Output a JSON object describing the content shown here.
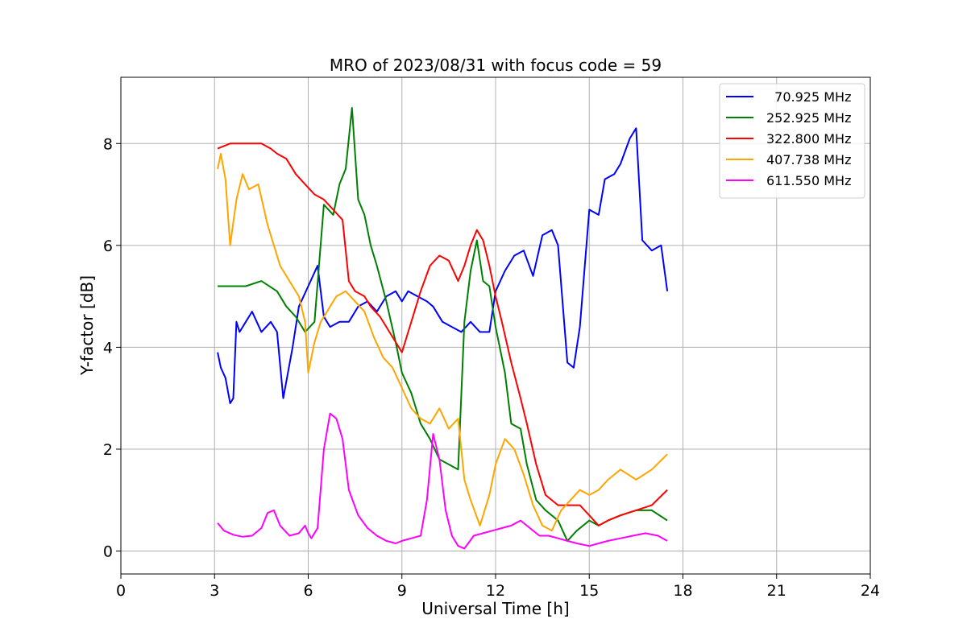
{
  "chart_data": {
    "type": "line",
    "title": "MRO of 2023/08/31 with focus code = 59",
    "xlabel": "Universal Time [h]",
    "ylabel": "Y-factor [dB]",
    "xlim": [
      0,
      24
    ],
    "ylim": [
      -0.45,
      9.3
    ],
    "xticks": [
      0,
      3,
      6,
      9,
      12,
      15,
      18,
      21,
      24
    ],
    "yticks": [
      0,
      2,
      4,
      6,
      8
    ],
    "grid": true,
    "legend_position": "top-right",
    "series": [
      {
        "name": "  70.925 MHz",
        "color": "#0000ff",
        "x": [
          3.1,
          3.2,
          3.35,
          3.5,
          3.6,
          3.7,
          3.8,
          4.0,
          4.2,
          4.5,
          4.8,
          5.0,
          5.2,
          5.5,
          5.7,
          6.0,
          6.3,
          6.5,
          6.7,
          7.0,
          7.3,
          7.6,
          7.9,
          8.2,
          8.5,
          8.8,
          9.0,
          9.2,
          9.5,
          9.8,
          10.0,
          10.3,
          10.6,
          10.9,
          11.2,
          11.5,
          11.8,
          12.0,
          12.3,
          12.6,
          12.9,
          13.2,
          13.5,
          13.8,
          14.0,
          14.3,
          14.5,
          14.7,
          15.0,
          15.3,
          15.5,
          15.8,
          16.0,
          16.3,
          16.5,
          16.7,
          17.0,
          17.3,
          17.5
        ],
        "y": [
          3.9,
          3.6,
          3.4,
          2.9,
          3.0,
          4.5,
          4.3,
          4.5,
          4.7,
          4.3,
          4.5,
          4.3,
          3.0,
          4.0,
          4.8,
          5.2,
          5.6,
          4.6,
          4.4,
          4.5,
          4.5,
          4.8,
          4.9,
          4.7,
          5.0,
          5.1,
          4.9,
          5.1,
          5.0,
          4.9,
          4.8,
          4.5,
          4.4,
          4.3,
          4.5,
          4.3,
          4.3,
          5.1,
          5.5,
          5.8,
          5.9,
          5.4,
          6.2,
          6.3,
          6.0,
          3.7,
          3.6,
          4.4,
          6.7,
          6.6,
          7.3,
          7.4,
          7.6,
          8.1,
          8.3,
          6.1,
          5.9,
          6.0,
          5.1
        ]
      },
      {
        "name": "252.925 MHz",
        "color": "#008000",
        "x": [
          3.1,
          3.5,
          4.0,
          4.5,
          5.0,
          5.3,
          5.6,
          5.9,
          6.2,
          6.5,
          6.8,
          7.0,
          7.2,
          7.4,
          7.6,
          7.8,
          8.0,
          8.2,
          8.5,
          8.8,
          9.0,
          9.3,
          9.6,
          9.9,
          10.2,
          10.5,
          10.8,
          11.0,
          11.2,
          11.4,
          11.6,
          11.8,
          12.0,
          12.3,
          12.5,
          12.8,
          13.0,
          13.3,
          13.6,
          14.0,
          14.3,
          14.6,
          15.0,
          15.3,
          15.6,
          16.0,
          16.5,
          17.0,
          17.5
        ],
        "y": [
          5.2,
          5.2,
          5.2,
          5.3,
          5.1,
          4.8,
          4.6,
          4.3,
          4.5,
          6.8,
          6.6,
          7.2,
          7.5,
          8.7,
          6.9,
          6.6,
          6.0,
          5.6,
          4.9,
          4.1,
          3.5,
          3.1,
          2.5,
          2.2,
          1.8,
          1.7,
          1.6,
          4.5,
          5.5,
          6.1,
          5.3,
          5.2,
          4.4,
          3.5,
          2.5,
          2.4,
          1.7,
          1.0,
          0.8,
          0.6,
          0.2,
          0.4,
          0.6,
          0.5,
          0.6,
          0.7,
          0.8,
          0.8,
          0.6
        ]
      },
      {
        "name": "322.800 MHz",
        "color": "#ff0000",
        "x": [
          3.1,
          3.5,
          4.0,
          4.5,
          4.8,
          5.0,
          5.3,
          5.6,
          5.9,
          6.2,
          6.5,
          6.8,
          7.1,
          7.3,
          7.5,
          7.8,
          8.0,
          8.3,
          8.6,
          8.9,
          9.0,
          9.3,
          9.6,
          9.9,
          10.2,
          10.5,
          10.8,
          11.0,
          11.2,
          11.4,
          11.6,
          11.8,
          12.0,
          12.2,
          12.5,
          12.8,
          13.0,
          13.3,
          13.6,
          14.0,
          14.3,
          14.7,
          15.0,
          15.3,
          15.6,
          16.0,
          16.5,
          17.0,
          17.5
        ],
        "y": [
          7.9,
          8.0,
          8.0,
          8.0,
          7.9,
          7.8,
          7.7,
          7.4,
          7.2,
          7.0,
          6.9,
          6.7,
          6.5,
          5.3,
          5.1,
          5.0,
          4.8,
          4.6,
          4.3,
          4.0,
          3.9,
          4.5,
          5.1,
          5.6,
          5.8,
          5.7,
          5.3,
          5.6,
          6.0,
          6.3,
          6.1,
          5.6,
          5.0,
          4.5,
          3.7,
          3.0,
          2.5,
          1.7,
          1.1,
          0.9,
          0.9,
          0.9,
          0.7,
          0.5,
          0.6,
          0.7,
          0.8,
          0.9,
          1.2
        ]
      },
      {
        "name": "407.738 MHz",
        "color": "#ffa500",
        "x": [
          3.1,
          3.2,
          3.35,
          3.5,
          3.7,
          3.9,
          4.1,
          4.4,
          4.7,
          4.9,
          5.1,
          5.3,
          5.5,
          5.7,
          5.9,
          6.0,
          6.2,
          6.4,
          6.6,
          6.9,
          7.2,
          7.5,
          7.8,
          8.1,
          8.4,
          8.7,
          9.0,
          9.3,
          9.6,
          9.9,
          10.2,
          10.5,
          10.8,
          11.0,
          11.2,
          11.5,
          11.8,
          12.0,
          12.3,
          12.6,
          12.9,
          13.2,
          13.5,
          13.8,
          14.1,
          14.4,
          14.7,
          15.0,
          15.3,
          15.6,
          16.0,
          16.5,
          17.0,
          17.5
        ],
        "y": [
          7.5,
          7.8,
          7.3,
          6.0,
          6.9,
          7.4,
          7.1,
          7.2,
          6.4,
          6.0,
          5.6,
          5.4,
          5.2,
          5.0,
          4.5,
          3.5,
          4.1,
          4.5,
          4.7,
          5.0,
          5.1,
          4.9,
          4.7,
          4.2,
          3.8,
          3.6,
          3.2,
          2.8,
          2.6,
          2.5,
          2.8,
          2.4,
          2.6,
          1.4,
          1.0,
          0.5,
          1.1,
          1.7,
          2.2,
          2.0,
          1.5,
          0.9,
          0.5,
          0.4,
          0.8,
          1.0,
          1.2,
          1.1,
          1.2,
          1.4,
          1.6,
          1.4,
          1.6,
          1.9
        ]
      },
      {
        "name": "611.550 MHz",
        "color": "#ff00ff",
        "x": [
          3.1,
          3.3,
          3.6,
          3.9,
          4.2,
          4.5,
          4.7,
          4.9,
          5.1,
          5.4,
          5.7,
          5.9,
          6.0,
          6.1,
          6.3,
          6.5,
          6.7,
          6.9,
          7.1,
          7.3,
          7.6,
          7.9,
          8.2,
          8.5,
          8.8,
          9.0,
          9.3,
          9.6,
          9.8,
          10.0,
          10.2,
          10.4,
          10.6,
          10.8,
          11.0,
          11.3,
          11.6,
          11.9,
          12.2,
          12.5,
          12.8,
          13.1,
          13.4,
          13.7,
          14.0,
          14.3,
          14.6,
          15.0,
          15.3,
          15.6,
          16.0,
          16.4,
          16.8,
          17.2,
          17.5
        ],
        "y": [
          0.55,
          0.4,
          0.32,
          0.28,
          0.3,
          0.45,
          0.75,
          0.8,
          0.5,
          0.3,
          0.35,
          0.5,
          0.35,
          0.25,
          0.45,
          2.0,
          2.7,
          2.6,
          2.2,
          1.2,
          0.7,
          0.45,
          0.3,
          0.2,
          0.15,
          0.2,
          0.25,
          0.3,
          1.0,
          2.3,
          1.8,
          0.8,
          0.3,
          0.1,
          0.05,
          0.3,
          0.35,
          0.4,
          0.45,
          0.5,
          0.6,
          0.45,
          0.3,
          0.3,
          0.25,
          0.2,
          0.15,
          0.1,
          0.15,
          0.2,
          0.25,
          0.3,
          0.35,
          0.3,
          0.2
        ]
      }
    ]
  }
}
